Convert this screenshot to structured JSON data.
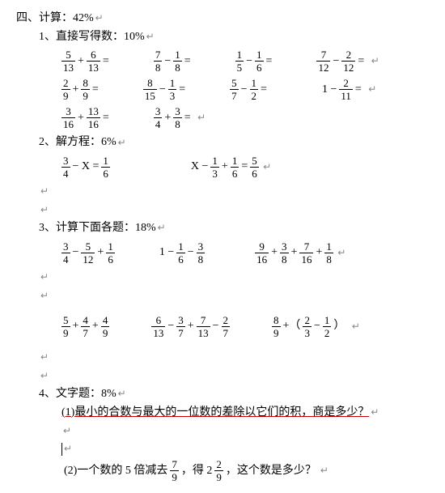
{
  "title": "四、计算：42%",
  "s1": {
    "heading": "1、直接写得数：10%",
    "r1": {
      "a": [
        "5",
        "13",
        "+",
        "6",
        "13",
        "="
      ],
      "b": [
        "7",
        "8",
        "−",
        "1",
        "8",
        "="
      ],
      "c": [
        "1",
        "5",
        "−",
        "1",
        "6",
        "="
      ],
      "d": [
        "7",
        "12",
        "−",
        "2",
        "12",
        "="
      ]
    },
    "r2": {
      "a": [
        "2",
        "9",
        "+",
        "8",
        "9",
        "="
      ],
      "b": [
        "8",
        "15",
        "−",
        "1",
        "3",
        "="
      ],
      "c": [
        "5",
        "7",
        "−",
        "1",
        "2",
        "="
      ],
      "d_pre": "1 −",
      "d": [
        "2",
        "11",
        "="
      ]
    },
    "r3": {
      "a": [
        "3",
        "16",
        "+",
        "13",
        "16",
        "="
      ],
      "b": [
        "3",
        "4",
        "+",
        "3",
        "8",
        "="
      ]
    }
  },
  "s2": {
    "heading": "2、解方程：6%",
    "a_pre": "− X =",
    "a_f1": [
      "3",
      "4"
    ],
    "a_f2": [
      "1",
      "6"
    ],
    "b_pre": "X −",
    "b_f1": [
      "1",
      "3"
    ],
    "b_mid": "+",
    "b_f2": [
      "1",
      "6"
    ],
    "b_eq": "=",
    "b_f3": [
      "5",
      "6"
    ]
  },
  "s3": {
    "heading": "3、计算下面各题：18%",
    "r1": {
      "a": [
        "3",
        "4",
        "−",
        "5",
        "12",
        "+",
        "1",
        "6"
      ],
      "b_pre": "1 −",
      "b": [
        "1",
        "6",
        "−",
        "3",
        "8"
      ],
      "c": [
        "9",
        "16",
        "+",
        "3",
        "8",
        "+",
        "7",
        "16",
        "+",
        "1",
        "8"
      ]
    },
    "r2": {
      "a": [
        "5",
        "9",
        "+",
        "4",
        "7",
        "+",
        "4",
        "9"
      ],
      "b": [
        "6",
        "13",
        "−",
        "3",
        "7",
        "+",
        "7",
        "13",
        "−",
        "2",
        "7"
      ],
      "c_f1": [
        "8",
        "9"
      ],
      "c_mid1": "+（",
      "c_f2": [
        "2",
        "3"
      ],
      "c_mid2": "−",
      "c_f3": [
        "1",
        "2"
      ],
      "c_end": "）"
    }
  },
  "s4": {
    "heading": "4、文字题：8%",
    "q1": "(1)最小的合数与最大的一位数的差除以它们的积，商是多少？",
    "q2a": "(2)一个数的 5 倍减去",
    "q2f1": [
      "7",
      "9"
    ],
    "q2b": "，得 2",
    "q2f2": [
      "2",
      "9"
    ],
    "q2c": "，这个数是多少？"
  },
  "mark": "↵"
}
